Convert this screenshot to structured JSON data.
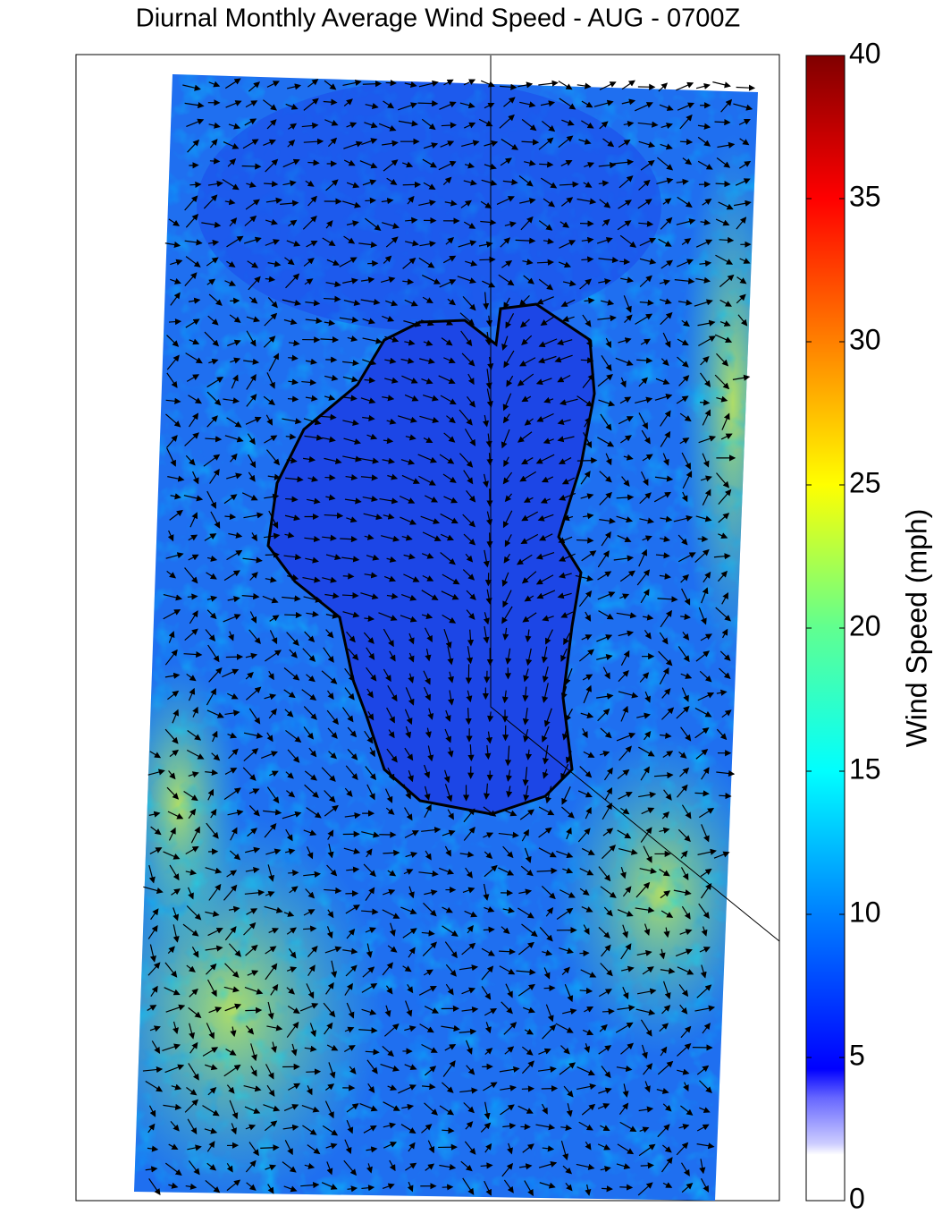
{
  "chart_data": {
    "type": "map",
    "title": "Diurnal Monthly Average Wind Speed - AUG - 0700Z",
    "colorbar": {
      "label": "Wind Speed (mph)",
      "lim": [
        0,
        40
      ],
      "ticks": [
        0,
        5,
        10,
        15,
        20,
        25,
        30,
        35,
        40
      ]
    }
  }
}
